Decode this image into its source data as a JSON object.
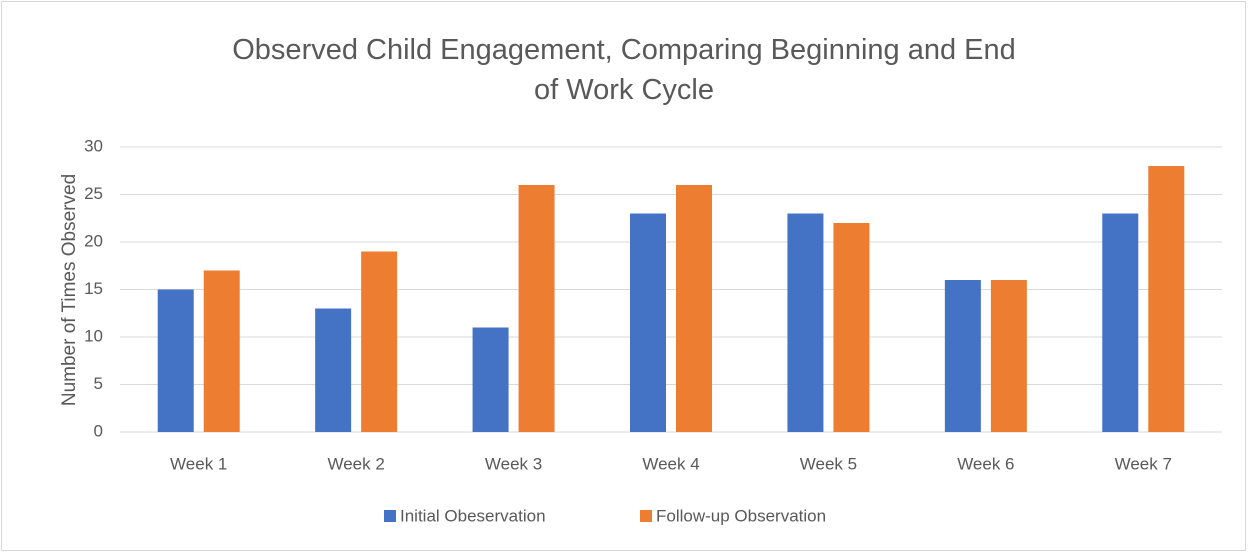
{
  "chart_data": {
    "type": "bar",
    "title": "Observed Child Engagement, Comparing Beginning and End of Work Cycle",
    "y_label": "Number of Times Observed",
    "categories": [
      "Week 1",
      "Week 2",
      "Week 3",
      "Week 4",
      "Week 5",
      "Week 6",
      "Week 7"
    ],
    "series": [
      {
        "name": "Initial Obeservation",
        "color": "#4472c4",
        "values": [
          15,
          13,
          11,
          23,
          23,
          16,
          23
        ]
      },
      {
        "name": "Follow-up Observation",
        "color": "#ed7d31",
        "values": [
          17,
          19,
          26,
          26,
          22,
          16,
          28
        ]
      }
    ],
    "ylim": [
      0,
      30
    ],
    "yticks": [
      0,
      5,
      10,
      15,
      20,
      25,
      30
    ],
    "grid": true,
    "legend": "bottom"
  }
}
